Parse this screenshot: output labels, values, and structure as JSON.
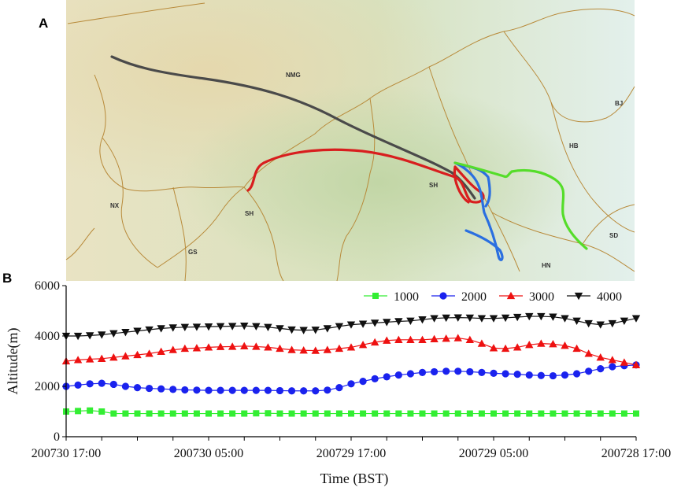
{
  "panel_a": {
    "label": "A",
    "region_labels": [
      "NMG",
      "BJ",
      "HB",
      "SH",
      "NX",
      "SH",
      "GS",
      "SD",
      "HN"
    ],
    "trajectory_colors": {
      "1000": "#55dd2a",
      "2000": "#2a6fe0",
      "3000": "#d81e1e",
      "4000": "#4a4a4a"
    }
  },
  "panel_b": {
    "label": "B"
  },
  "chart_data": {
    "type": "line",
    "title": "",
    "xlabel": "Time (BST)",
    "ylabel": "Altitude(m)",
    "ylim": [
      0,
      6000
    ],
    "yticks": [
      "0",
      "2000",
      "4000",
      "6000"
    ],
    "xlim": [
      0,
      48
    ],
    "xtick_positions": [
      0,
      12,
      24,
      36,
      48
    ],
    "xticks": [
      "200730 17:00",
      "200730 05:00",
      "200729 17:00",
      "200729 05:00",
      "200728 17:00"
    ],
    "legend_position": "top-right",
    "series": [
      {
        "name": "1000",
        "color": "#33ee33",
        "marker": "square",
        "x": [
          0,
          1,
          2,
          3,
          4,
          5,
          6,
          7,
          8,
          9,
          10,
          11,
          12,
          13,
          14,
          15,
          16,
          17,
          18,
          19,
          20,
          21,
          22,
          23,
          24,
          25,
          26,
          27,
          28,
          29,
          30,
          31,
          32,
          33,
          34,
          35,
          36,
          37,
          38,
          39,
          40,
          41,
          42,
          43,
          44,
          45,
          46,
          47,
          48
        ],
        "values": [
          1000,
          1020,
          1040,
          1000,
          920,
          920,
          920,
          920,
          920,
          920,
          920,
          920,
          920,
          920,
          920,
          920,
          930,
          930,
          920,
          920,
          920,
          920,
          920,
          920,
          920,
          920,
          920,
          920,
          920,
          920,
          920,
          920,
          920,
          920,
          920,
          920,
          920,
          920,
          920,
          920,
          920,
          920,
          920,
          920,
          920,
          920,
          920,
          920,
          920
        ]
      },
      {
        "name": "2000",
        "color": "#1a22ee",
        "marker": "circle",
        "x": [
          0,
          1,
          2,
          3,
          4,
          5,
          6,
          7,
          8,
          9,
          10,
          11,
          12,
          13,
          14,
          15,
          16,
          17,
          18,
          19,
          20,
          21,
          22,
          23,
          24,
          25,
          26,
          27,
          28,
          29,
          30,
          31,
          32,
          33,
          34,
          35,
          36,
          37,
          38,
          39,
          40,
          41,
          42,
          43,
          44,
          45,
          46,
          47,
          48
        ],
        "values": [
          2000,
          2050,
          2100,
          2120,
          2080,
          2000,
          1950,
          1920,
          1900,
          1880,
          1860,
          1850,
          1840,
          1840,
          1840,
          1840,
          1840,
          1840,
          1830,
          1820,
          1820,
          1820,
          1850,
          1950,
          2100,
          2200,
          2300,
          2380,
          2450,
          2500,
          2550,
          2580,
          2600,
          2600,
          2580,
          2550,
          2520,
          2500,
          2480,
          2450,
          2430,
          2420,
          2450,
          2500,
          2600,
          2700,
          2780,
          2820,
          2850
        ]
      },
      {
        "name": "3000",
        "color": "#ee1111",
        "marker": "triangle-up",
        "x": [
          0,
          1,
          2,
          3,
          4,
          5,
          6,
          7,
          8,
          9,
          10,
          11,
          12,
          13,
          14,
          15,
          16,
          17,
          18,
          19,
          20,
          21,
          22,
          23,
          24,
          25,
          26,
          27,
          28,
          29,
          30,
          31,
          32,
          33,
          34,
          35,
          36,
          37,
          38,
          39,
          40,
          41,
          42,
          43,
          44,
          45,
          46,
          47,
          48
        ],
        "values": [
          3000,
          3050,
          3080,
          3100,
          3150,
          3200,
          3250,
          3300,
          3380,
          3450,
          3500,
          3520,
          3550,
          3570,
          3580,
          3600,
          3580,
          3550,
          3500,
          3450,
          3430,
          3420,
          3450,
          3500,
          3550,
          3650,
          3750,
          3820,
          3850,
          3850,
          3850,
          3880,
          3900,
          3920,
          3850,
          3700,
          3520,
          3500,
          3550,
          3650,
          3700,
          3680,
          3620,
          3500,
          3300,
          3150,
          3050,
          2950,
          2850
        ]
      },
      {
        "name": "4000",
        "color": "#111111",
        "marker": "triangle-down",
        "x": [
          0,
          1,
          2,
          3,
          4,
          5,
          6,
          7,
          8,
          9,
          10,
          11,
          12,
          13,
          14,
          15,
          16,
          17,
          18,
          19,
          20,
          21,
          22,
          23,
          24,
          25,
          26,
          27,
          28,
          29,
          30,
          31,
          32,
          33,
          34,
          35,
          36,
          37,
          38,
          39,
          40,
          41,
          42,
          43,
          44,
          45,
          46,
          47,
          48
        ],
        "values": [
          4000,
          4000,
          4020,
          4050,
          4100,
          4150,
          4200,
          4250,
          4300,
          4330,
          4350,
          4360,
          4370,
          4380,
          4390,
          4400,
          4380,
          4350,
          4300,
          4250,
          4230,
          4240,
          4300,
          4380,
          4450,
          4480,
          4520,
          4550,
          4580,
          4600,
          4650,
          4700,
          4720,
          4730,
          4720,
          4700,
          4700,
          4720,
          4750,
          4780,
          4780,
          4760,
          4700,
          4600,
          4500,
          4450,
          4500,
          4600,
          4700
        ]
      }
    ]
  }
}
